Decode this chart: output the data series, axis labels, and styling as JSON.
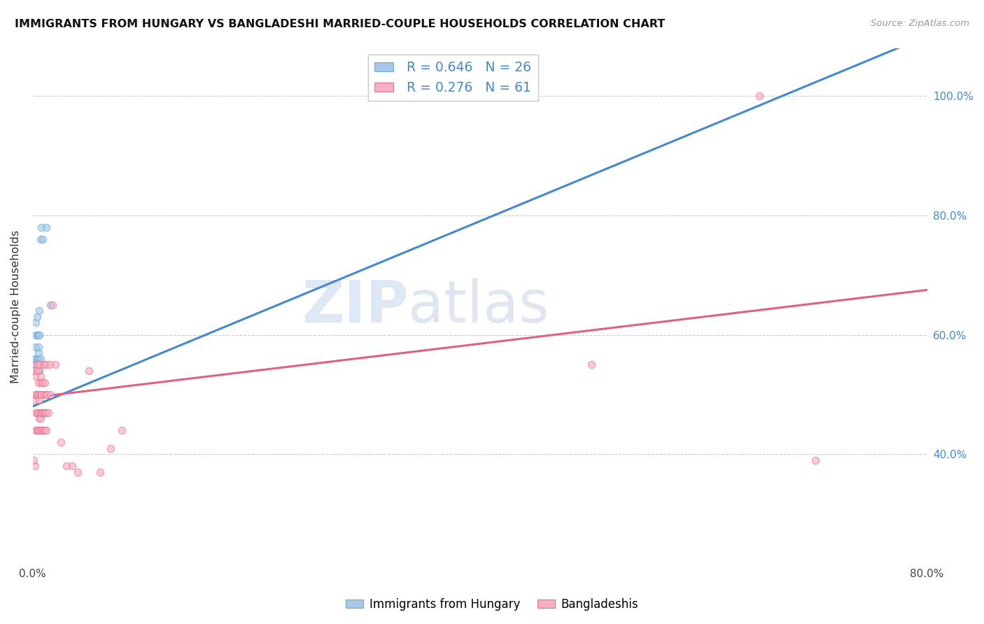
{
  "title": "IMMIGRANTS FROM HUNGARY VS BANGLADESHI MARRIED-COUPLE HOUSEHOLDS CORRELATION CHART",
  "source": "Source: ZipAtlas.com",
  "ylabel": "Married-couple Households",
  "watermark_zip": "ZIP",
  "watermark_atlas": "atlas",
  "blue_scatter_x": [
    0.001,
    0.002,
    0.002,
    0.003,
    0.003,
    0.003,
    0.003,
    0.004,
    0.004,
    0.004,
    0.004,
    0.005,
    0.005,
    0.005,
    0.005,
    0.005,
    0.006,
    0.006,
    0.006,
    0.006,
    0.007,
    0.007,
    0.008,
    0.009,
    0.012,
    0.016
  ],
  "blue_scatter_y": [
    0.54,
    0.55,
    0.56,
    0.56,
    0.58,
    0.6,
    0.62,
    0.54,
    0.56,
    0.6,
    0.63,
    0.54,
    0.56,
    0.57,
    0.58,
    0.6,
    0.54,
    0.55,
    0.6,
    0.64,
    0.56,
    0.76,
    0.78,
    0.76,
    0.78,
    0.65
  ],
  "pink_scatter_x": [
    0.001,
    0.001,
    0.002,
    0.002,
    0.002,
    0.003,
    0.003,
    0.003,
    0.003,
    0.004,
    0.004,
    0.004,
    0.004,
    0.005,
    0.005,
    0.005,
    0.005,
    0.005,
    0.006,
    0.006,
    0.006,
    0.006,
    0.007,
    0.007,
    0.007,
    0.007,
    0.008,
    0.008,
    0.008,
    0.008,
    0.009,
    0.009,
    0.009,
    0.01,
    0.01,
    0.01,
    0.01,
    0.011,
    0.011,
    0.011,
    0.012,
    0.012,
    0.012,
    0.012,
    0.013,
    0.014,
    0.015,
    0.016,
    0.018,
    0.02,
    0.025,
    0.03,
    0.035,
    0.04,
    0.05,
    0.06,
    0.07,
    0.08,
    0.5,
    0.65,
    0.7
  ],
  "pink_scatter_y": [
    0.39,
    0.54,
    0.38,
    0.49,
    0.54,
    0.44,
    0.47,
    0.5,
    0.53,
    0.44,
    0.47,
    0.5,
    0.55,
    0.44,
    0.47,
    0.5,
    0.52,
    0.54,
    0.44,
    0.46,
    0.49,
    0.55,
    0.46,
    0.47,
    0.5,
    0.53,
    0.44,
    0.47,
    0.5,
    0.52,
    0.44,
    0.47,
    0.52,
    0.44,
    0.47,
    0.5,
    0.55,
    0.44,
    0.47,
    0.52,
    0.44,
    0.47,
    0.5,
    0.55,
    0.5,
    0.47,
    0.55,
    0.5,
    0.65,
    0.55,
    0.42,
    0.38,
    0.38,
    0.37,
    0.54,
    0.37,
    0.41,
    0.44,
    0.55,
    1.0,
    0.39
  ],
  "blue_line_x": [
    0.0,
    0.8
  ],
  "blue_line_y": [
    0.48,
    1.1
  ],
  "pink_line_x": [
    0.0,
    0.8
  ],
  "pink_line_y": [
    0.495,
    0.675
  ],
  "xmin": 0.0,
  "xmax": 0.8,
  "ymin": 0.215,
  "ymax": 1.08,
  "yticks": [
    0.4,
    0.6,
    0.8,
    1.0
  ],
  "ytick_labels": [
    "40.0%",
    "60.0%",
    "80.0%",
    "100.0%"
  ],
  "xticks": [
    0.0,
    0.1,
    0.2,
    0.3,
    0.4,
    0.5,
    0.6,
    0.7,
    0.8
  ],
  "xtick_labels_show": [
    "0.0%",
    "",
    "",
    "",
    "",
    "",
    "",
    "",
    "80.0%"
  ],
  "scatter_size": 55,
  "scatter_alpha": 0.65,
  "blue_color": "#a8c8e8",
  "blue_edge": "#6aaad4",
  "blue_line_color": "#4488cc",
  "pink_color": "#f8b0c0",
  "pink_edge": "#e07090",
  "pink_line_color": "#e06080",
  "grid_color": "#cccccc",
  "R_blue": 0.646,
  "N_blue": 26,
  "R_pink": 0.276,
  "N_pink": 61
}
